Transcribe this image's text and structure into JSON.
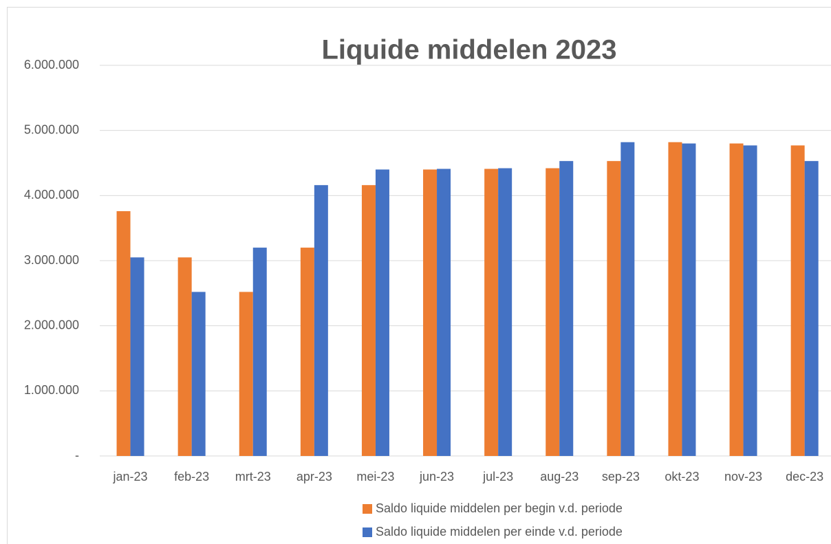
{
  "chart_data": {
    "type": "bar",
    "title": "Liquide middelen 2023",
    "categories": [
      "jan-23",
      "feb-23",
      "mrt-23",
      "apr-23",
      "mei-23",
      "jun-23",
      "jul-23",
      "aug-23",
      "sep-23",
      "okt-23",
      "nov-23",
      "dec-23"
    ],
    "series": [
      {
        "name": "Saldo liquide middelen per begin v.d. periode",
        "color": "#ed7d31",
        "values": [
          3760000,
          3050000,
          2520000,
          3200000,
          4160000,
          4400000,
          4410000,
          4420000,
          4530000,
          4820000,
          4800000,
          4770000
        ]
      },
      {
        "name": "Saldo liquide middelen per einde v.d. periode",
        "color": "#4472c4",
        "values": [
          3050000,
          2520000,
          3200000,
          4160000,
          4400000,
          4410000,
          4420000,
          4530000,
          4820000,
          4800000,
          4770000,
          4530000
        ]
      }
    ],
    "ylim": [
      0,
      6000000
    ],
    "yticks": [
      {
        "value": 0,
        "label": "-"
      },
      {
        "value": 1000000,
        "label": "1.000.000"
      },
      {
        "value": 2000000,
        "label": "2.000.000"
      },
      {
        "value": 3000000,
        "label": "3.000.000"
      },
      {
        "value": 4000000,
        "label": "4.000.000"
      },
      {
        "value": 5000000,
        "label": "5.000.000"
      },
      {
        "value": 6000000,
        "label": "6.000.000"
      }
    ],
    "grid": true,
    "legend": "bottom"
  }
}
